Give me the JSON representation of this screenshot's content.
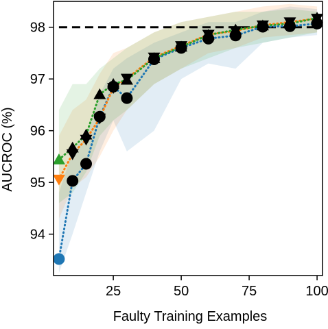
{
  "chart_data": {
    "type": "line",
    "title": "",
    "xlabel": "Faulty Training Examples",
    "ylabel": "AUCROC (%)",
    "xlim": [
      3,
      102
    ],
    "ylim": [
      93.2,
      98.5
    ],
    "xticks": [
      25,
      50,
      75,
      100
    ],
    "yticks": [
      94,
      95,
      96,
      97,
      98
    ],
    "grid": false,
    "legend": "none",
    "reference_line": {
      "y": 98.0,
      "style": "dashed",
      "color": "#000000"
    },
    "x": [
      5,
      10,
      15,
      20,
      25,
      30,
      40,
      50,
      60,
      70,
      80,
      90,
      100
    ],
    "series": [
      {
        "color": "#1f77b4",
        "start_marker": "circle",
        "values": [
          93.52,
          95.03,
          95.36,
          96.27,
          96.85,
          96.63,
          97.38,
          97.6,
          97.78,
          97.84,
          98.01,
          98.02,
          98.07
        ],
        "band_low": [
          93.25,
          94.0,
          94.8,
          95.6,
          96.2,
          95.6,
          96.0,
          97.0,
          97.3,
          97.2,
          97.7,
          97.8,
          97.85
        ],
        "band_high": [
          94.8,
          95.6,
          95.9,
          96.7,
          97.2,
          97.4,
          97.7,
          97.9,
          98.1,
          98.1,
          98.3,
          98.4,
          98.35
        ]
      },
      {
        "color": "#ff7f0e",
        "start_marker": "triangle-down",
        "values": [
          95.06,
          95.55,
          95.83,
          96.24,
          96.83,
          97.01,
          97.42,
          97.64,
          97.86,
          97.93,
          98.04,
          98.1,
          98.17
        ],
        "band_low": [
          94.3,
          94.9,
          95.1,
          95.5,
          96.0,
          96.4,
          96.9,
          97.2,
          97.5,
          97.6,
          97.8,
          97.85,
          97.9
        ],
        "band_high": [
          95.9,
          96.4,
          96.6,
          97.1,
          97.5,
          97.6,
          97.9,
          98.1,
          98.2,
          98.3,
          98.4,
          98.45,
          98.4
        ]
      },
      {
        "color": "#2ca02c",
        "start_marker": "triangle-up",
        "values": [
          95.44,
          95.67,
          95.92,
          96.7,
          96.9,
          96.98,
          97.4,
          97.62,
          97.85,
          97.95,
          98.03,
          98.07,
          98.18
        ],
        "band_low": [
          94.6,
          94.8,
          95.2,
          95.9,
          96.2,
          96.4,
          96.9,
          97.2,
          97.4,
          97.6,
          97.7,
          97.8,
          97.9
        ],
        "band_high": [
          96.4,
          96.9,
          96.9,
          97.2,
          97.4,
          97.6,
          97.9,
          98.1,
          98.2,
          98.3,
          98.3,
          98.35,
          98.3
        ]
      }
    ]
  }
}
